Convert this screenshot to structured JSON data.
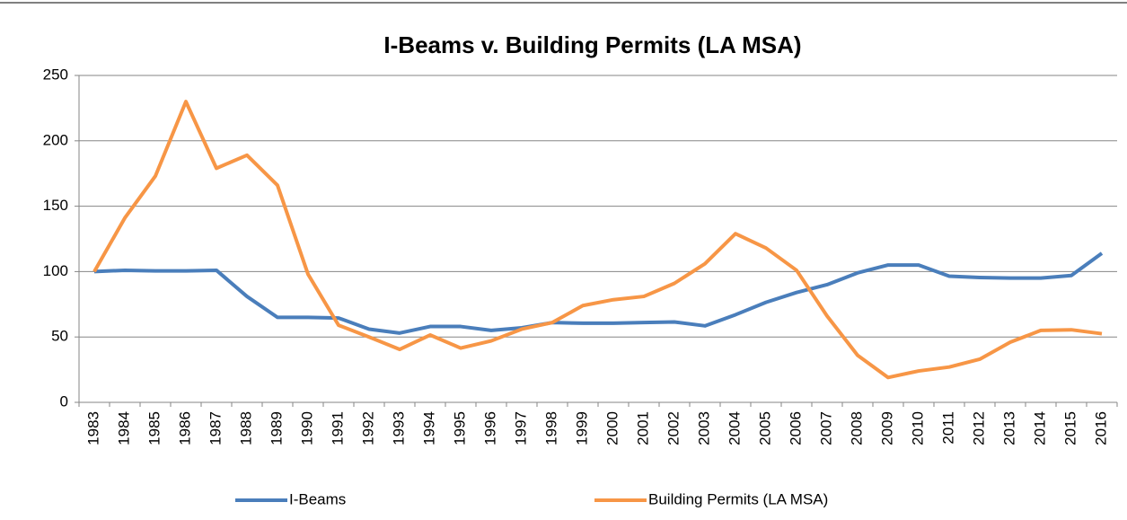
{
  "chart_data": {
    "type": "line",
    "title": "I-Beams v. Building Permits (LA MSA)",
    "categories": [
      "1983",
      "1984",
      "1985",
      "1986",
      "1987",
      "1988",
      "1989",
      "1990",
      "1991",
      "1992",
      "1993",
      "1994",
      "1995",
      "1996",
      "1997",
      "1998",
      "1999",
      "2000",
      "2001",
      "2002",
      "2003",
      "2004",
      "2005",
      "2006",
      "2007",
      "2008",
      "2009",
      "2010",
      "2011",
      "2012",
      "2013",
      "2014",
      "2015",
      "2016"
    ],
    "series": [
      {
        "name": "I-Beams",
        "color": "#4a7ebb",
        "values": [
          100,
          101,
          100.5,
          100.5,
          101,
          81,
          65,
          65,
          64.5,
          56,
          53,
          58,
          58,
          55,
          57,
          61,
          60.5,
          60.5,
          61,
          61.5,
          58.5,
          67,
          76.5,
          84,
          90,
          99,
          105,
          105,
          96.5,
          95.5,
          95,
          95,
          97,
          114
        ]
      },
      {
        "name": "Building Permits (LA MSA)",
        "color": "#f79646",
        "values": [
          100,
          141,
          173,
          230,
          179,
          189,
          166,
          98,
          59,
          50,
          40.5,
          51.5,
          41.5,
          47,
          56,
          61,
          74,
          78.5,
          81,
          91,
          106,
          129,
          118,
          101,
          66,
          36,
          19,
          24,
          27,
          33,
          46,
          55,
          55.5,
          52.5
        ]
      }
    ],
    "ylim": [
      0,
      250
    ],
    "yticks": [
      0,
      50,
      100,
      150,
      200,
      250
    ],
    "grid": true,
    "legend": "bottom"
  }
}
